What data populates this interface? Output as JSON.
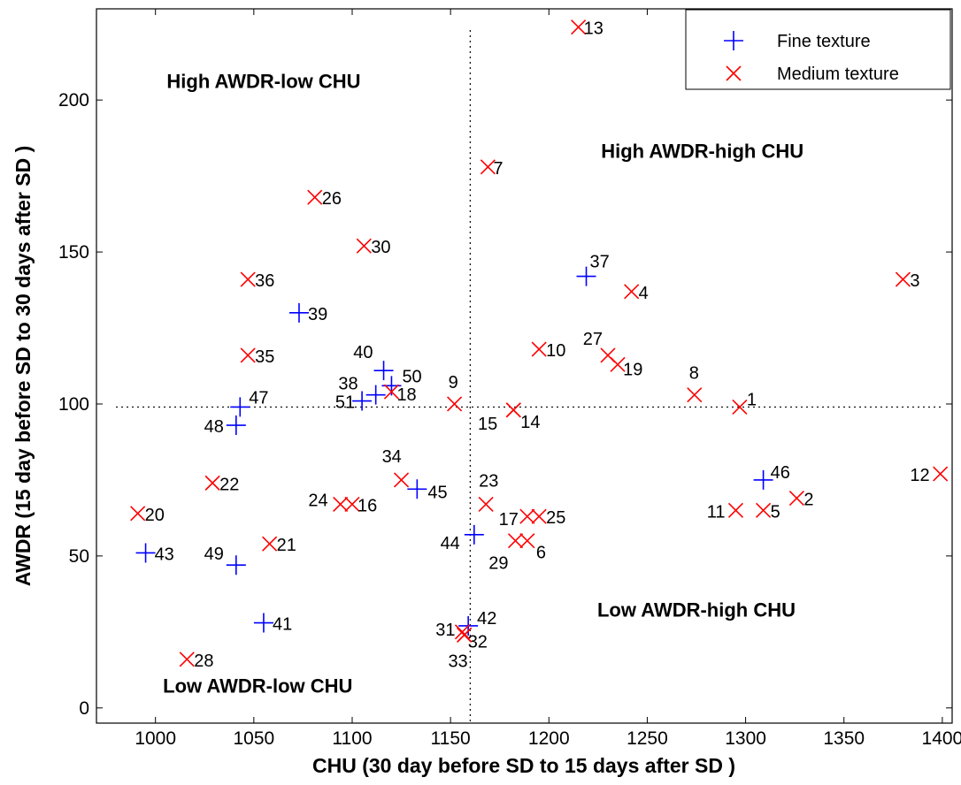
{
  "chart_data": {
    "type": "scatter",
    "xlabel": "CHU (30 day before SD to 15 days after SD )",
    "ylabel": "AWDR (15 day before SD to 30 days after SD )",
    "xlim": [
      970,
      1405
    ],
    "ylim": [
      -5,
      230
    ],
    "xticks": [
      1000,
      1050,
      1100,
      1150,
      1200,
      1250,
      1300,
      1350,
      1400
    ],
    "yticks": [
      0,
      50,
      100,
      150,
      200
    ],
    "grid": false,
    "legend_position": "top-right",
    "reference_lines": {
      "x": 1160,
      "y": 99
    },
    "region_labels": [
      {
        "text": "High AWDR-low CHU",
        "x": 1055,
        "y": 204
      },
      {
        "text": "High AWDR-high CHU",
        "x": 1278,
        "y": 181
      },
      {
        "text": "Low AWDR-high CHU",
        "x": 1275,
        "y": 30
      },
      {
        "text": "Low AWDR-low CHU",
        "x": 1052,
        "y": 5
      }
    ],
    "series": [
      {
        "name": "Fine texture",
        "marker": "plus",
        "color": "#0000ff",
        "points": [
          {
            "id": "37",
            "x": 1219,
            "y": 142
          },
          {
            "id": "39",
            "x": 1073,
            "y": 130
          },
          {
            "id": "40",
            "x": 1116,
            "y": 111
          },
          {
            "id": "50",
            "x": 1120,
            "y": 106
          },
          {
            "id": "38",
            "x": 1112,
            "y": 103
          },
          {
            "id": "51",
            "x": 1105,
            "y": 101
          },
          {
            "id": "47",
            "x": 1043,
            "y": 99
          },
          {
            "id": "48",
            "x": 1041,
            "y": 93
          },
          {
            "id": "45",
            "x": 1133,
            "y": 72
          },
          {
            "id": "46",
            "x": 1309,
            "y": 75
          },
          {
            "id": "44",
            "x": 1162,
            "y": 57
          },
          {
            "id": "43",
            "x": 995,
            "y": 51
          },
          {
            "id": "49",
            "x": 1041,
            "y": 47
          },
          {
            "id": "41",
            "x": 1055,
            "y": 28
          },
          {
            "id": "42",
            "x": 1159,
            "y": 27
          }
        ]
      },
      {
        "name": "Medium texture",
        "marker": "x",
        "color": "#ff0000",
        "points": [
          {
            "id": "13",
            "x": 1215,
            "y": 224
          },
          {
            "id": "7",
            "x": 1169,
            "y": 178
          },
          {
            "id": "26",
            "x": 1081,
            "y": 168
          },
          {
            "id": "30",
            "x": 1106,
            "y": 152
          },
          {
            "id": "36",
            "x": 1047,
            "y": 141
          },
          {
            "id": "3",
            "x": 1380,
            "y": 141
          },
          {
            "id": "4",
            "x": 1242,
            "y": 137
          },
          {
            "id": "10",
            "x": 1195,
            "y": 118
          },
          {
            "id": "35",
            "x": 1047,
            "y": 116
          },
          {
            "id": "27",
            "x": 1230,
            "y": 116
          },
          {
            "id": "19",
            "x": 1235,
            "y": 113
          },
          {
            "id": "18",
            "x": 1120,
            "y": 104
          },
          {
            "id": "9",
            "x": 1152,
            "y": 100
          },
          {
            "id": "8",
            "x": 1274,
            "y": 103
          },
          {
            "id": "1",
            "x": 1297,
            "y": 99
          },
          {
            "id": "14",
            "x": 1182,
            "y": 98
          },
          {
            "id": "15",
            "x": 1182,
            "y": 98
          },
          {
            "id": "12",
            "x": 1399,
            "y": 77
          },
          {
            "id": "34",
            "x": 1125,
            "y": 75
          },
          {
            "id": "22",
            "x": 1029,
            "y": 74
          },
          {
            "id": "2",
            "x": 1326,
            "y": 69
          },
          {
            "id": "23",
            "x": 1168,
            "y": 67
          },
          {
            "id": "24",
            "x": 1094,
            "y": 67
          },
          {
            "id": "16",
            "x": 1100,
            "y": 67
          },
          {
            "id": "20",
            "x": 991,
            "y": 64
          },
          {
            "id": "11",
            "x": 1295,
            "y": 65
          },
          {
            "id": "5",
            "x": 1309,
            "y": 65
          },
          {
            "id": "17",
            "x": 1189,
            "y": 63
          },
          {
            "id": "25",
            "x": 1195,
            "y": 63
          },
          {
            "id": "29",
            "x": 1183,
            "y": 55
          },
          {
            "id": "6",
            "x": 1189,
            "y": 55
          },
          {
            "id": "21",
            "x": 1058,
            "y": 54
          },
          {
            "id": "31",
            "x": 1156,
            "y": 25
          },
          {
            "id": "32",
            "x": 1157,
            "y": 24
          },
          {
            "id": "33",
            "x": 1157,
            "y": 24
          },
          {
            "id": "28",
            "x": 1016,
            "y": 16
          }
        ]
      }
    ]
  }
}
